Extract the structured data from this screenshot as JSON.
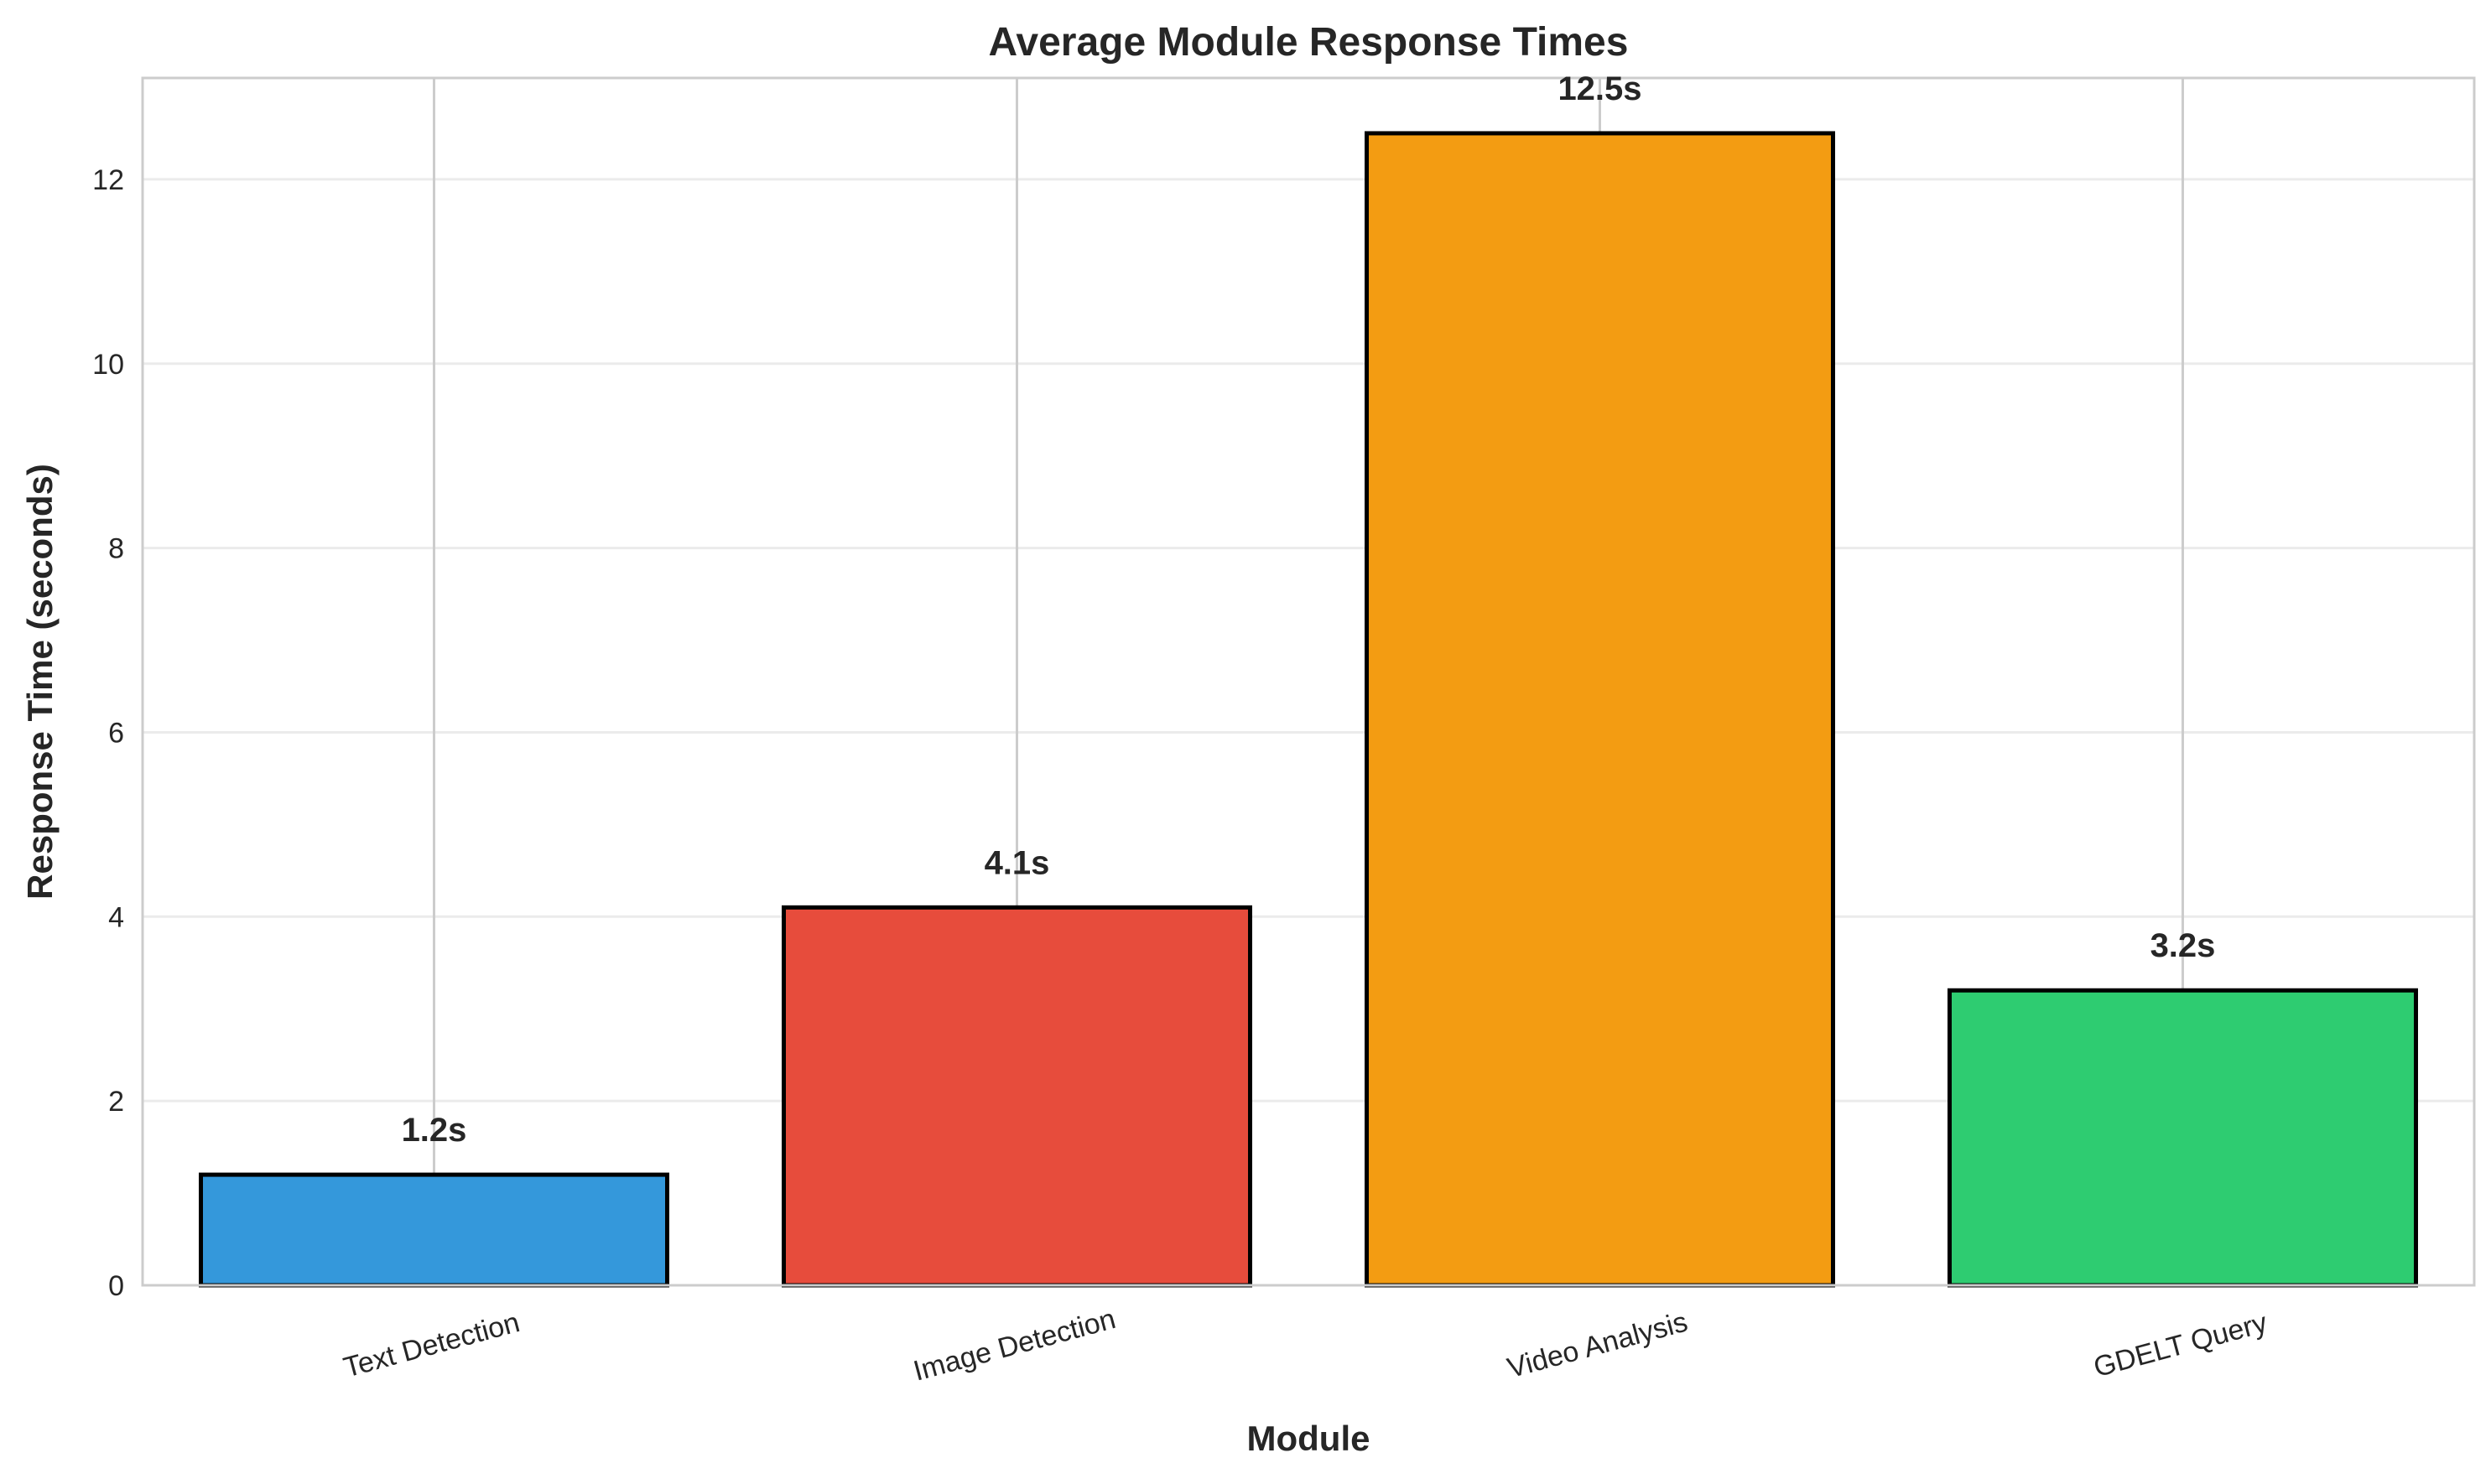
{
  "chart_data": {
    "type": "bar",
    "title": "Average Module Response Times",
    "xlabel": "Module",
    "ylabel": "Response Time (seconds)",
    "categories": [
      "Text Detection",
      "Image Detection",
      "Video Analysis",
      "GDELT Query"
    ],
    "values": [
      1.2,
      4.1,
      12.5,
      3.2
    ],
    "value_labels": [
      "1.2s",
      "4.1s",
      "12.5s",
      "3.2s"
    ],
    "colors": [
      "#3498db",
      "#e74c3c",
      "#f39c12",
      "#2ecc71"
    ],
    "ylim": [
      0,
      13.1
    ],
    "yticks": [
      0,
      2,
      4,
      6,
      8,
      10,
      12
    ],
    "grid": true,
    "legend": "none"
  }
}
